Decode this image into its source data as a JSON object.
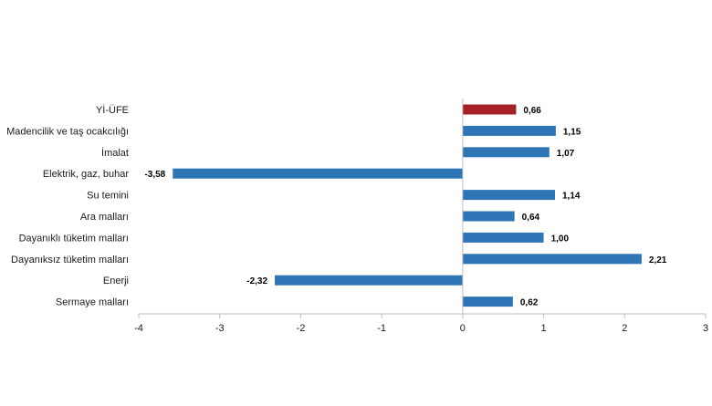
{
  "chart_data": {
    "type": "bar",
    "orientation": "horizontal",
    "title": "",
    "xlabel": "",
    "ylabel": "",
    "xlim": [
      -4,
      3
    ],
    "x_ticks": [
      -4,
      -3,
      -2,
      -1,
      0,
      1,
      2,
      3
    ],
    "x_tick_labels": [
      "-4",
      "-3",
      "-2",
      "-1",
      "0",
      "1",
      "2",
      "3"
    ],
    "grid": false,
    "legend": "none",
    "categories": [
      "Yİ-ÜFE",
      "Madencilik ve taş ocakcılığı",
      "İmalat",
      "Elektrik, gaz, buhar",
      "Su temini",
      "Ara malları",
      "Dayanıklı tüketim malları",
      "Dayanıksız tüketim malları",
      "Enerji",
      "Sermaye malları"
    ],
    "values": [
      0.66,
      1.15,
      1.07,
      -3.58,
      1.14,
      0.64,
      1.0,
      2.21,
      -2.32,
      0.62
    ],
    "value_labels": [
      "0,66",
      "1,15",
      "1,07",
      "-3,58",
      "1,14",
      "0,64",
      "1,00",
      "2,21",
      "-2,32",
      "0,62"
    ],
    "highlight_index": 0,
    "colors": {
      "bar": "#2e75b6",
      "highlight": "#a52024",
      "axis": "#bfbfbf",
      "text": "#1a1a1a"
    }
  }
}
